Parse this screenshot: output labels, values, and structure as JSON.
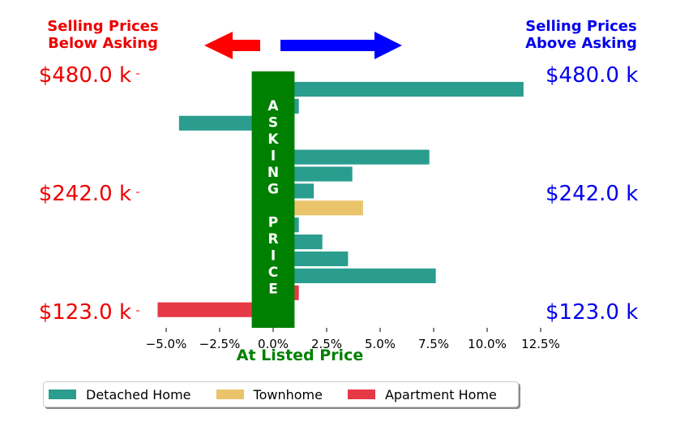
{
  "header_left": {
    "line1": "Selling Prices",
    "line2": "Below Asking",
    "color": "#ee0000"
  },
  "header_right": {
    "line1": "Selling Prices",
    "line2": "Above Asking",
    "color": "#0000ee"
  },
  "arrow_colors": {
    "left": "#ff0000",
    "right": "#0000ff"
  },
  "asking_band": {
    "letters": [
      "A",
      "S",
      "K",
      "I",
      "N",
      "G",
      "",
      "P",
      "R",
      "I",
      "C",
      "E"
    ],
    "color": "#008000",
    "x_range": [
      -1,
      1
    ]
  },
  "chart_data": {
    "type": "bar",
    "orientation": "horizontal",
    "xlabel": "At Listed Price",
    "xlabel_color": "#008000",
    "xlim": [
      -6.5,
      13.5
    ],
    "x_ticks": [
      -5.0,
      -2.5,
      0.0,
      2.5,
      5.0,
      7.5,
      10.0,
      12.5
    ],
    "x_tick_labels": [
      "−5.0%",
      "−2.5%",
      "0.0%",
      "2.5%",
      "5.0%",
      "7.5%",
      "10.0%",
      "12.5%"
    ],
    "y_tick_labels_left": [
      "$480.0 k",
      "$242.0 k",
      "$123.0 k"
    ],
    "y_tick_labels_right": [
      "$480.0 k",
      "$242.0 k",
      "$123.0 k"
    ],
    "y_tick_label_colors": {
      "left": "#ee0000",
      "right": "#0000ee"
    },
    "series": [
      {
        "name": "Detached Home",
        "color": "#2a9d8f"
      },
      {
        "name": "Townhome",
        "color": "#e9c46a"
      },
      {
        "name": "Apartment Home",
        "color": "#e63946"
      }
    ],
    "bars": [
      {
        "series": "Detached Home",
        "value": 11.7
      },
      {
        "series": "Detached Home",
        "value": 1.2
      },
      {
        "series": "Detached Home",
        "value": -4.4
      },
      {
        "series": "Detached Home",
        "value": 0.0
      },
      {
        "series": "Detached Home",
        "value": 7.3
      },
      {
        "series": "Detached Home",
        "value": 3.7
      },
      {
        "series": "Detached Home",
        "value": 1.9
      },
      {
        "series": "Townhome",
        "value": 4.2
      },
      {
        "series": "Detached Home",
        "value": 1.2
      },
      {
        "series": "Detached Home",
        "value": 2.3
      },
      {
        "series": "Detached Home",
        "value": 3.5
      },
      {
        "series": "Detached Home",
        "value": 7.6
      },
      {
        "series": "Apartment Home",
        "value": 1.2
      },
      {
        "series": "Apartment Home",
        "value": -5.4
      }
    ],
    "legend_position": "bottom"
  }
}
